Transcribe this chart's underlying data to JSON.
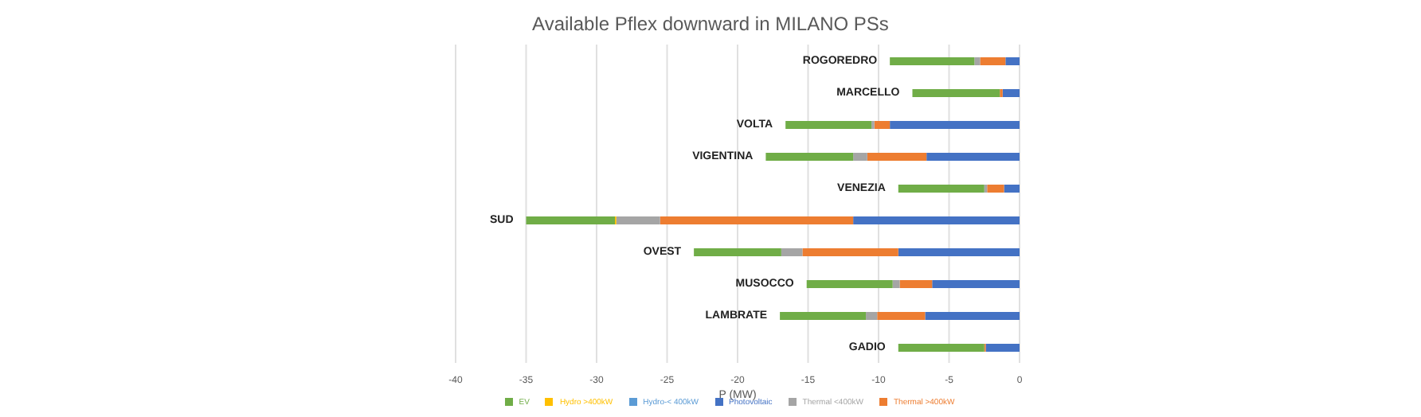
{
  "chart_data": {
    "type": "bar",
    "orientation": "horizontal",
    "stacked": true,
    "title": "Available Pflex downward in MILANO PSs",
    "xlabel": "P (MW)",
    "categories": [
      "ROGOREDRO",
      "MARCELLO",
      "VOLTA",
      "VIGENTINA",
      "VENEZIA",
      "SUD",
      "OVEST",
      "MUSOCCO",
      "LAMBRATE",
      "GADIO"
    ],
    "series": [
      {
        "name": "Photovoltaic",
        "color": "#4472c4",
        "values": [
          -1.0,
          -1.2,
          -9.2,
          -6.6,
          -1.1,
          -11.8,
          -8.6,
          -6.2,
          -6.7,
          -2.4
        ]
      },
      {
        "name": "Thermal >400kW",
        "color": "#ed7d31",
        "values": [
          -1.8,
          -0.2,
          -1.1,
          -4.2,
          -1.2,
          -13.7,
          -6.8,
          -2.3,
          -3.4,
          -0.1
        ]
      },
      {
        "name": "Thermal <400kW",
        "color": "#a5a5a5",
        "values": [
          -0.4,
          null,
          -0.2,
          -1.0,
          -0.2,
          -3.1,
          -1.5,
          -0.5,
          -0.8,
          null
        ]
      },
      {
        "name": "Hydro >400kW",
        "color": "#ffc000",
        "values": [
          null,
          null,
          null,
          null,
          null,
          -0.1,
          null,
          null,
          null,
          null
        ]
      },
      {
        "name": "Hydro-< 400kW",
        "color": "#5b9bd5",
        "values": [
          null,
          null,
          null,
          null,
          null,
          null,
          null,
          null,
          null,
          null
        ]
      },
      {
        "name": "EV",
        "color": "#70ad47",
        "values": [
          -6.0,
          -6.2,
          -6.1,
          -6.2,
          -6.1,
          -6.3,
          -6.2,
          -6.1,
          -6.1,
          -6.1
        ]
      }
    ],
    "xlim": [
      -40,
      0
    ],
    "xticks": [
      -40,
      -35,
      -30,
      -25,
      -20,
      -15,
      -10,
      -5,
      0
    ],
    "grid": "x",
    "legend": "bottom"
  }
}
